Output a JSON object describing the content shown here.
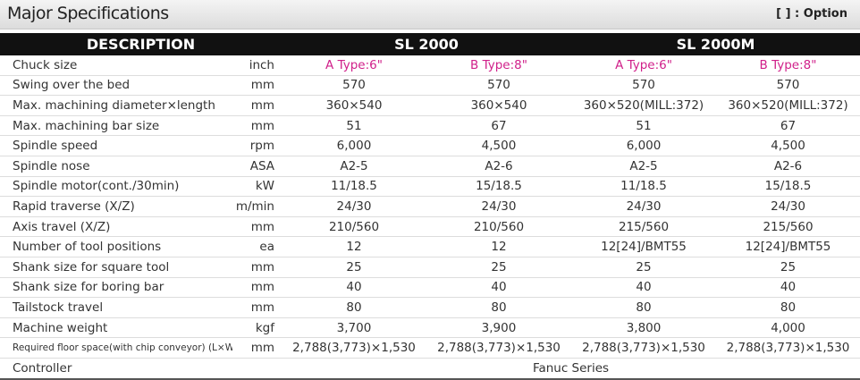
{
  "header": {
    "title": "Major Specifications",
    "option_note": "[   ] : Option"
  },
  "table": {
    "columns": [
      "DESCRIPTION",
      "SL 2000",
      "SL 2000M"
    ],
    "rows": [
      [
        "Chuck size",
        "inch",
        "A Type:6\"",
        "B Type:8\"",
        "A Type:6\"",
        "B Type:8\""
      ],
      [
        "Swing over the bed",
        "mm",
        "570",
        "570",
        "570",
        "570"
      ],
      [
        "Max. machining diameter×length",
        "mm",
        "360×540",
        "360×540",
        "360×520(MILL:372)",
        "360×520(MILL:372)"
      ],
      [
        "Max. machining bar size",
        "mm",
        "51",
        "67",
        "51",
        "67"
      ],
      [
        "Spindle speed",
        "rpm",
        "6,000",
        "4,500",
        "6,000",
        "4,500"
      ],
      [
        "Spindle nose",
        "ASA",
        "A2-5",
        "A2-6",
        "A2-5",
        "A2-6"
      ],
      [
        "Spindle motor(cont./30min)",
        "kW",
        "11/18.5",
        "15/18.5",
        "11/18.5",
        "15/18.5"
      ],
      [
        "Rapid traverse (X/Z)",
        "m/min",
        "24/30",
        "24/30",
        "24/30",
        "24/30"
      ],
      [
        "Axis travel (X/Z)",
        "mm",
        "210/560",
        "210/560",
        "215/560",
        "215/560"
      ],
      [
        "Number of tool positions",
        "ea",
        "12",
        "12",
        "12[24]/BMT55",
        "12[24]/BMT55"
      ],
      [
        "Shank size for square tool",
        "mm",
        "25",
        "25",
        "25",
        "25"
      ],
      [
        "Shank size for boring bar",
        "mm",
        "40",
        "40",
        "40",
        "40"
      ],
      [
        "Tailstock travel",
        "mm",
        "80",
        "80",
        "80",
        "80"
      ],
      [
        "Machine weight",
        "kgf",
        "3,700",
        "3,900",
        "3,800",
        "4,000"
      ],
      [
        "Required floor space(with chip conveyor) (L×W)",
        "mm",
        "2,788(3,773)×1,530",
        "2,788(3,773)×1,530",
        "2,788(3,773)×1,530",
        "2,788(3,773)×1,530"
      ]
    ],
    "controller": {
      "label": "Controller",
      "value": "Fanuc Series"
    }
  }
}
